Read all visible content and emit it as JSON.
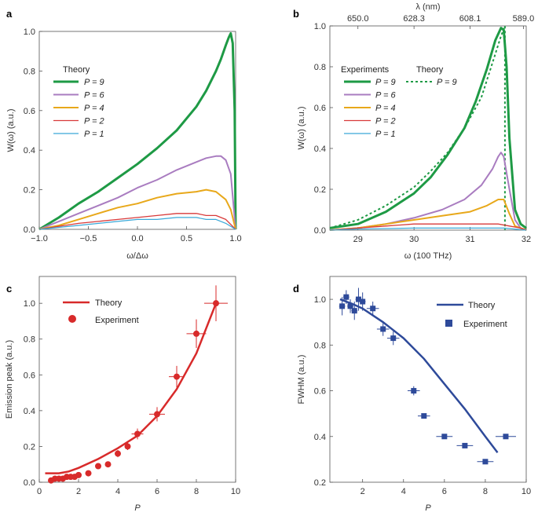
{
  "chart_data": [
    {
      "panel": "a",
      "type": "line",
      "xlabel": "ω/Δω",
      "ylabel": "W(ω) (a.u.)",
      "xlim": [
        -1.0,
        1.0
      ],
      "ylim": [
        0.0,
        1.0
      ],
      "xticks": [
        "−1.0",
        "−0.5",
        "0.0",
        "0.5",
        "1.0"
      ],
      "yticks": [
        "0.0",
        "0.2",
        "0.4",
        "0.6",
        "0.8",
        "1.0"
      ],
      "legend_title": "Theory",
      "series": [
        {
          "name": "P = 9",
          "color": "#1e9a45",
          "x": [
            -1.0,
            -0.8,
            -0.6,
            -0.4,
            -0.2,
            0.0,
            0.2,
            0.4,
            0.6,
            0.7,
            0.8,
            0.85,
            0.9,
            0.93,
            0.95,
            0.97,
            0.99,
            1.0
          ],
          "y": [
            0.0,
            0.06,
            0.13,
            0.19,
            0.26,
            0.33,
            0.41,
            0.5,
            0.62,
            0.7,
            0.8,
            0.86,
            0.93,
            0.97,
            0.99,
            0.94,
            0.6,
            0.0
          ]
        },
        {
          "name": "P = 6",
          "color": "#a97cc0",
          "x": [
            -1.0,
            -0.8,
            -0.6,
            -0.4,
            -0.2,
            0.0,
            0.2,
            0.4,
            0.6,
            0.7,
            0.8,
            0.85,
            0.9,
            0.95,
            1.0
          ],
          "y": [
            0.0,
            0.04,
            0.08,
            0.12,
            0.16,
            0.21,
            0.25,
            0.3,
            0.34,
            0.36,
            0.37,
            0.37,
            0.35,
            0.28,
            0.0
          ]
        },
        {
          "name": "P = 4",
          "color": "#e8a81a",
          "x": [
            -1.0,
            -0.8,
            -0.6,
            -0.4,
            -0.2,
            0.0,
            0.2,
            0.4,
            0.6,
            0.7,
            0.8,
            0.9,
            0.95,
            1.0
          ],
          "y": [
            0.0,
            0.02,
            0.05,
            0.08,
            0.11,
            0.13,
            0.16,
            0.18,
            0.19,
            0.2,
            0.19,
            0.15,
            0.1,
            0.0
          ]
        },
        {
          "name": "P = 2",
          "color": "#d83a3a",
          "x": [
            -1.0,
            -0.6,
            -0.2,
            0.0,
            0.2,
            0.4,
            0.5,
            0.6,
            0.7,
            0.8,
            0.9,
            1.0
          ],
          "y": [
            0.0,
            0.03,
            0.05,
            0.06,
            0.07,
            0.08,
            0.08,
            0.08,
            0.07,
            0.07,
            0.05,
            0.0
          ]
        },
        {
          "name": "P = 1",
          "color": "#3aa8d8",
          "x": [
            -1.0,
            -0.6,
            -0.2,
            0.0,
            0.2,
            0.4,
            0.5,
            0.6,
            0.7,
            0.8,
            0.9,
            1.0
          ],
          "y": [
            0.0,
            0.02,
            0.04,
            0.05,
            0.05,
            0.06,
            0.06,
            0.06,
            0.05,
            0.05,
            0.03,
            0.0
          ]
        }
      ]
    },
    {
      "panel": "b",
      "type": "line",
      "xlabel": "ω (100 THz)",
      "ylabel": "W(ω) (a.u.)",
      "top_xlabel": "λ (nm)",
      "xlim": [
        28.5,
        32.0
      ],
      "ylim": [
        0.0,
        1.0
      ],
      "xticks": [
        "29",
        "30",
        "31",
        "32"
      ],
      "top_xticks": [
        "650.0",
        "628.3",
        "608.1",
        "589.0"
      ],
      "yticks": [
        "0.0",
        "0.2",
        "0.4",
        "0.6",
        "0.8",
        "1.0"
      ],
      "legend_title_experiments": "Experiments",
      "legend_title_theory": "Theory",
      "theory_label": "P = 9",
      "series": [
        {
          "name": "P = 9",
          "color": "#1e9a45",
          "x": [
            28.5,
            29.0,
            29.5,
            30.0,
            30.3,
            30.6,
            30.9,
            31.1,
            31.3,
            31.45,
            31.55,
            31.6,
            31.65,
            31.7,
            31.8,
            31.9,
            32.0
          ],
          "y": [
            0.01,
            0.03,
            0.09,
            0.18,
            0.26,
            0.37,
            0.5,
            0.63,
            0.79,
            0.93,
            0.99,
            0.98,
            0.8,
            0.45,
            0.1,
            0.03,
            0.01
          ]
        },
        {
          "name": "P = 6",
          "color": "#a97cc0",
          "x": [
            28.5,
            29.0,
            29.5,
            30.0,
            30.5,
            30.9,
            31.2,
            31.4,
            31.5,
            31.55,
            31.6,
            31.7,
            31.8,
            31.9,
            32.0
          ],
          "y": [
            0.0,
            0.01,
            0.03,
            0.06,
            0.1,
            0.15,
            0.22,
            0.3,
            0.36,
            0.38,
            0.36,
            0.2,
            0.05,
            0.01,
            0.0
          ]
        },
        {
          "name": "P = 4",
          "color": "#e8a81a",
          "x": [
            28.5,
            29.0,
            29.5,
            30.0,
            30.5,
            31.0,
            31.3,
            31.5,
            31.6,
            31.7,
            31.8,
            31.9,
            32.0
          ],
          "y": [
            0.0,
            0.01,
            0.03,
            0.05,
            0.07,
            0.09,
            0.12,
            0.15,
            0.15,
            0.08,
            0.02,
            0.01,
            0.0
          ]
        },
        {
          "name": "P = 2",
          "color": "#d83a3a",
          "x": [
            28.5,
            29.0,
            29.5,
            30.0,
            30.5,
            31.0,
            31.5,
            31.7,
            31.9,
            32.0
          ],
          "y": [
            0.0,
            0.01,
            0.02,
            0.03,
            0.03,
            0.03,
            0.03,
            0.02,
            0.01,
            0.0
          ]
        },
        {
          "name": "P = 1",
          "color": "#3aa8d8",
          "x": [
            28.5,
            29.0,
            30.0,
            31.0,
            31.6,
            32.0
          ],
          "y": [
            0.0,
            0.005,
            0.01,
            0.01,
            0.01,
            0.0
          ]
        }
      ],
      "theory_series": {
        "name": "P = 9",
        "color": "#1e9a45",
        "x": [
          28.5,
          29.0,
          29.5,
          30.0,
          30.3,
          30.6,
          30.9,
          31.2,
          31.4,
          31.55,
          31.62,
          31.62
        ],
        "y": [
          0.01,
          0.05,
          0.12,
          0.21,
          0.29,
          0.38,
          0.5,
          0.65,
          0.82,
          0.95,
          1.0,
          0.0
        ]
      }
    },
    {
      "panel": "c",
      "type": "scatter",
      "xlabel": "P",
      "ylabel": "Emission peak (a.u.)",
      "xlim": [
        0,
        10
      ],
      "ylim": [
        0.0,
        1.15
      ],
      "xticks": [
        "0",
        "2",
        "4",
        "6",
        "8",
        "10"
      ],
      "yticks": [
        "0.0",
        "0.2",
        "0.4",
        "0.6",
        "0.8",
        "1.0"
      ],
      "legend": [
        "Theory",
        "Experiment"
      ],
      "color": "#d82a2a",
      "theory": {
        "x": [
          0.3,
          1.0,
          1.5,
          2.0,
          3.0,
          4.0,
          5.0,
          6.0,
          7.0,
          8.0,
          9.0
        ],
        "y": [
          0.05,
          0.05,
          0.06,
          0.08,
          0.13,
          0.19,
          0.26,
          0.37,
          0.52,
          0.72,
          1.0
        ]
      },
      "experiment": {
        "x": [
          0.6,
          0.8,
          1.0,
          1.2,
          1.4,
          1.6,
          1.8,
          2.0,
          2.5,
          3.0,
          3.5,
          4.0,
          4.5,
          5.0,
          6.0,
          7.0,
          8.0,
          9.0
        ],
        "y": [
          0.01,
          0.02,
          0.02,
          0.02,
          0.03,
          0.03,
          0.03,
          0.04,
          0.05,
          0.09,
          0.1,
          0.16,
          0.2,
          0.27,
          0.38,
          0.59,
          0.83,
          1.0
        ],
        "yerr": [
          0,
          0,
          0,
          0,
          0,
          0,
          0,
          0,
          0,
          0,
          0,
          0.02,
          0.02,
          0.03,
          0.04,
          0.06,
          0.08,
          0.1
        ],
        "xerr": [
          0,
          0,
          0,
          0,
          0,
          0,
          0,
          0,
          0,
          0,
          0,
          0,
          0,
          0.3,
          0.4,
          0.4,
          0.5,
          0.6
        ]
      }
    },
    {
      "panel": "d",
      "type": "scatter",
      "xlabel": "P",
      "ylabel": "FWHM (a.u.)",
      "xlim": [
        0.4,
        10
      ],
      "ylim": [
        0.2,
        1.1
      ],
      "xticks": [
        "2",
        "4",
        "6",
        "8",
        "10"
      ],
      "xtick_values": [
        2,
        4,
        6,
        8,
        10
      ],
      "yticks": [
        "0.2",
        "0.4",
        "0.6",
        "0.8",
        "1.0"
      ],
      "legend": [
        "Theory",
        "Experiment"
      ],
      "color": "#2e4a9a",
      "theory": {
        "x": [
          0.9,
          1.5,
          2.0,
          3.0,
          4.0,
          5.0,
          6.0,
          7.0,
          8.0,
          8.6
        ],
        "y": [
          1.0,
          0.98,
          0.96,
          0.9,
          0.83,
          0.74,
          0.63,
          0.52,
          0.4,
          0.33
        ]
      },
      "experiment": {
        "x": [
          1.0,
          1.2,
          1.4,
          1.6,
          1.8,
          2.0,
          2.5,
          3.0,
          3.5,
          4.5,
          5.0,
          6.0,
          7.0,
          8.0,
          9.0
        ],
        "y": [
          0.97,
          1.01,
          0.97,
          0.95,
          1.0,
          0.99,
          0.96,
          0.87,
          0.83,
          0.6,
          0.49,
          0.4,
          0.36,
          0.29,
          0.4
        ],
        "yerr": [
          0.04,
          0.03,
          0.03,
          0.04,
          0.05,
          0.04,
          0.03,
          0.03,
          0.03,
          0.02,
          0.01,
          0.01,
          0.01,
          0.01,
          0.01
        ],
        "xerr": [
          0.15,
          0.15,
          0.15,
          0.15,
          0.15,
          0.15,
          0.3,
          0.3,
          0.3,
          0.3,
          0.3,
          0.4,
          0.4,
          0.4,
          0.5
        ]
      }
    }
  ]
}
